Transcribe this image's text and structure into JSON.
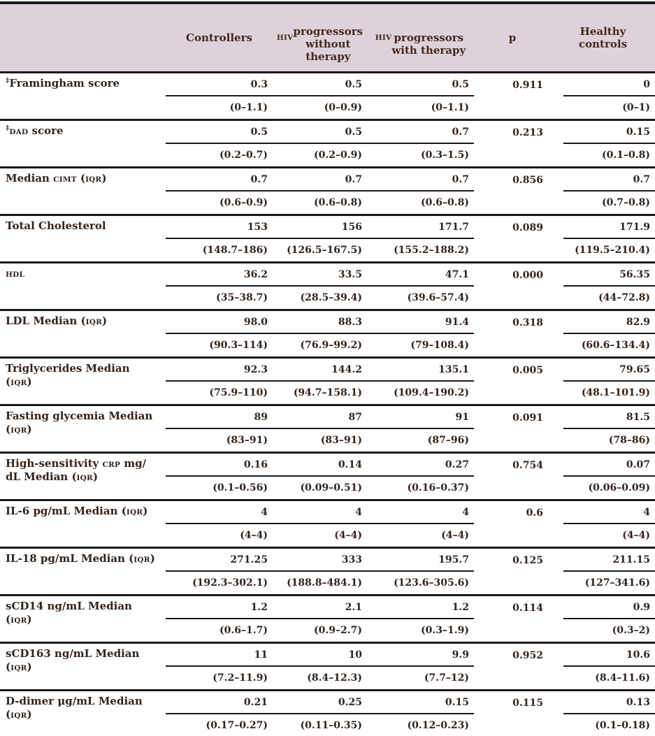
{
  "colors": {
    "header_bg": "#ddd2db",
    "header_text": "#44291c",
    "body_text": "#32231b",
    "line": "#1a1a1a"
  },
  "header": {
    "columns": [
      {
        "name": "parameter",
        "segments": [
          ""
        ]
      },
      {
        "name": "controllers",
        "segments": [
          "Controllers"
        ]
      },
      {
        "name": "hiv-progressors-without-therapy",
        "segments": [
          {
            "sc": "HIV"
          },
          {
            "br": true
          },
          "progressors",
          {
            "br": true
          },
          "without",
          {
            "br": true
          },
          "therapy"
        ]
      },
      {
        "name": "hiv-progressors-with-therapy",
        "segments": [
          {
            "sc": "HIV"
          },
          {
            "br": true
          },
          "progressors",
          {
            "br": true
          },
          "with therapy"
        ]
      },
      {
        "name": "p-value",
        "segments": [
          "p"
        ]
      },
      {
        "name": "healthy-controls",
        "segments": [
          "Healthy",
          {
            "br": true
          },
          "controls"
        ]
      }
    ]
  },
  "rows": [
    {
      "label": [
        {
          "sup": "‡"
        },
        "Framingham score"
      ],
      "medians": [
        "0.3",
        "0.5",
        "0.5",
        "0"
      ],
      "p": "0.911",
      "iqrs": [
        "(0–1.1)",
        "(0–0.9)",
        "(0–1.1)",
        "(0–1)"
      ]
    },
    {
      "label": [
        {
          "sup": "‡"
        },
        {
          "sc": "DAD"
        },
        " score"
      ],
      "medians": [
        "0.5",
        "0.5",
        "0.7",
        "0.15"
      ],
      "p": "0.213",
      "iqrs": [
        "(0.2–0.7)",
        "(0.2–0.9)",
        "(0.3–1.5)",
        "(0.1–0.8)"
      ]
    },
    {
      "label": [
        "Median ",
        {
          "sc": "CIMT"
        },
        " (",
        {
          "sc": "IQR"
        },
        ")"
      ],
      "medians": [
        "0.7",
        "0.7",
        "0.7",
        "0.7"
      ],
      "p": "0.856",
      "iqrs": [
        "(0.6–0.9)",
        "(0.6–0.8)",
        "(0.6–0.8)",
        "(0.7–0.8)"
      ]
    },
    {
      "label": [
        "Total Cholesterol"
      ],
      "medians": [
        "153",
        "156",
        "171.7",
        "171.9"
      ],
      "p": "0.089",
      "iqrs": [
        "(148.7–186)",
        "(126.5–167.5)",
        "(155.2–188.2)",
        "(119.5–210.4)"
      ]
    },
    {
      "label": [
        {
          "sc": "HDL"
        }
      ],
      "medians": [
        "36.2",
        "33.5",
        "47.1",
        "56.35"
      ],
      "p": "0.000",
      "iqrs": [
        "(35–38.7)",
        "(28.5–39.4)",
        "(39.6–57.4)",
        "(44–72.8)"
      ]
    },
    {
      "label": [
        "LDL Median (",
        {
          "sc": "IQR"
        },
        ")"
      ],
      "medians": [
        "98.0",
        "88.3",
        "91.4",
        "82.9"
      ],
      "p": "0.318",
      "iqrs": [
        "(90.3–114)",
        "(76.9–99.2)",
        "(79–108.4)",
        "(60.6–134.4)"
      ]
    },
    {
      "label": [
        "Triglycerides Median",
        {
          "br": true
        },
        "(",
        {
          "sc": "IQR"
        },
        ")"
      ],
      "medians": [
        "92.3",
        "144.2",
        "135.1",
        "79.65"
      ],
      "p": "0.005",
      "iqrs": [
        "(75.9–110)",
        "(94.7–158.1)",
        "(109.4–190.2)",
        "(48.1–101.9)"
      ]
    },
    {
      "label": [
        "Fasting glycemia Median",
        {
          "br": true
        },
        "(",
        {
          "sc": "IQR"
        },
        ")"
      ],
      "medians": [
        "89",
        "87",
        "91",
        "81.5"
      ],
      "p": "0.091",
      "iqrs": [
        "(83–91)",
        "(83–91)",
        "(87–96)",
        "(78–86)"
      ]
    },
    {
      "label": [
        "High-sensitivity ",
        {
          "sc": "CRP"
        },
        " mg/",
        {
          "br": true
        },
        "dL Median (",
        {
          "sc": "IQR"
        },
        ")"
      ],
      "medians": [
        "0.16",
        "0.14",
        "0.27",
        "0.07"
      ],
      "p": "0.754",
      "iqrs": [
        "(0.1–0.56)",
        "(0.09–0.51)",
        "(0.16–0.37)",
        "(0.06–0.09)"
      ]
    },
    {
      "label": [
        "IL-6 pg/mL Median (",
        {
          "sc": "IQR"
        },
        ")"
      ],
      "medians": [
        "4",
        "4",
        "4",
        "4"
      ],
      "p": "0.6",
      "iqrs": [
        "(4–4)",
        "(4–4)",
        "(4–4)",
        "(4–4)"
      ]
    },
    {
      "label": [
        "IL-18 pg/mL Median (",
        {
          "sc": "IQR"
        },
        ")"
      ],
      "medians": [
        "271.25",
        "333",
        "195.7",
        "211.15"
      ],
      "p": "0.125",
      "iqrs": [
        "(192.3–302.1)",
        "(188.8–484.1)",
        "(123.6–305.6)",
        "(127–341.6)"
      ]
    },
    {
      "label": [
        "sCD14 ng/mL Median",
        {
          "br": true
        },
        "(",
        {
          "sc": "IQR"
        },
        ")"
      ],
      "medians": [
        "1.2",
        "2.1",
        "1.2",
        "0.9"
      ],
      "p": "0.114",
      "iqrs": [
        "(0.6–1.7)",
        "(0.9–2.7)",
        "(0.3–1.9)",
        "(0.3–2)"
      ]
    },
    {
      "label": [
        "sCD163 ng/mL Median",
        {
          "br": true
        },
        "(",
        {
          "sc": "IQR"
        },
        ")"
      ],
      "medians": [
        "11",
        "10",
        "9.9",
        "10.6"
      ],
      "p": "0.952",
      "iqrs": [
        "(7.2–11.9)",
        "(8.4–12.3)",
        "(7.7–12)",
        "(8.4–11.6)"
      ]
    },
    {
      "label": [
        "D-dimer μg/mL Median",
        {
          "br": true
        },
        "(",
        {
          "sc": "IQR"
        },
        ")"
      ],
      "medians": [
        "0.21",
        "0.25",
        "0.15",
        "0.13"
      ],
      "p": "0.115",
      "iqrs": [
        "(0.17–0.27)",
        "(0.11–0.35)",
        "(0.12–0.23)",
        "(0.1–0.18)"
      ]
    }
  ]
}
